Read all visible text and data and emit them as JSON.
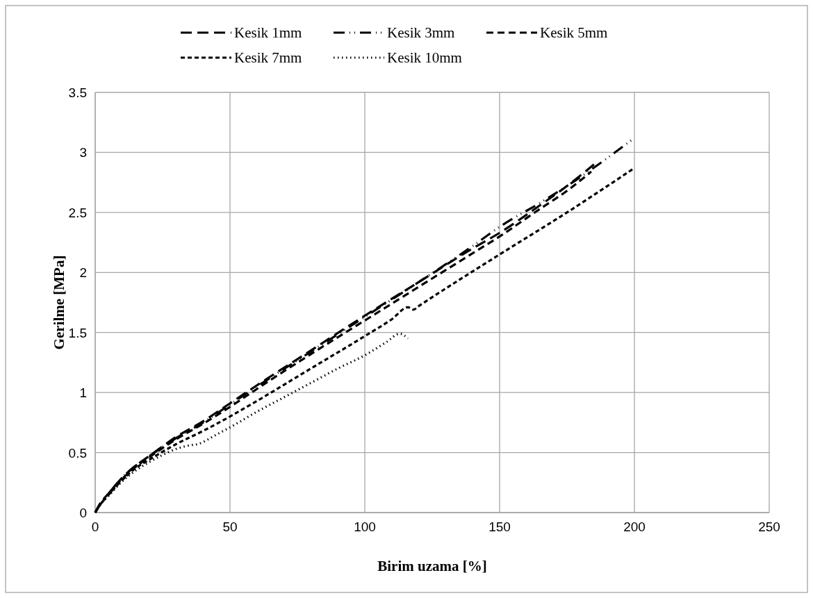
{
  "chart_data": {
    "type": "line",
    "xlabel": "Birim uzama [%]",
    "ylabel": "Gerilme [MPa]",
    "xlim": [
      0,
      250
    ],
    "ylim": [
      0,
      3.5
    ],
    "xticks": [
      0,
      50,
      100,
      150,
      200,
      250
    ],
    "yticks": [
      0,
      0.5,
      1,
      1.5,
      2,
      2.5,
      3,
      3.5
    ],
    "grid": true,
    "legend": "top",
    "marker": "none",
    "series": [
      {
        "name": "Kesik 1mm",
        "color": "#000000",
        "line_style": "long-dashed",
        "x": [
          0,
          2,
          5,
          10,
          15,
          20,
          30,
          40,
          50,
          60,
          80,
          100,
          120,
          140,
          150,
          165,
          175,
          185
        ],
        "values": [
          0,
          0.08,
          0.16,
          0.29,
          0.39,
          0.47,
          0.63,
          0.76,
          0.91,
          1.06,
          1.35,
          1.64,
          1.92,
          2.2,
          2.33,
          2.56,
          2.72,
          2.9
        ]
      },
      {
        "name": "Kesik 3mm",
        "color": "#000000",
        "line_style": "dash-dot-dot",
        "x": [
          0,
          2,
          5,
          10,
          15,
          20,
          30,
          40,
          50,
          60,
          80,
          100,
          120,
          140,
          150,
          165,
          175,
          200
        ],
        "values": [
          0,
          0.08,
          0.16,
          0.29,
          0.39,
          0.47,
          0.62,
          0.75,
          0.9,
          1.05,
          1.34,
          1.63,
          1.92,
          2.22,
          2.38,
          2.58,
          2.72,
          3.12
        ]
      },
      {
        "name": "Kesik 5mm",
        "color": "#000000",
        "line_style": "dashed",
        "x": [
          0,
          2,
          5,
          10,
          15,
          20,
          30,
          40,
          50,
          60,
          80,
          100,
          120,
          140,
          150,
          165,
          175,
          184
        ],
        "values": [
          0,
          0.07,
          0.15,
          0.28,
          0.38,
          0.46,
          0.61,
          0.74,
          0.88,
          1.03,
          1.32,
          1.6,
          1.88,
          2.16,
          2.3,
          2.53,
          2.68,
          2.84
        ]
      },
      {
        "name": "Kesik 7mm",
        "color": "#000000",
        "line_style": "short-dashed",
        "x": [
          0,
          2,
          5,
          10,
          15,
          20,
          30,
          40,
          50,
          60,
          80,
          100,
          110,
          116,
          118,
          120,
          150,
          175,
          200
        ],
        "values": [
          0,
          0.07,
          0.15,
          0.27,
          0.37,
          0.44,
          0.57,
          0.68,
          0.8,
          0.93,
          1.2,
          1.47,
          1.61,
          1.71,
          1.69,
          1.72,
          2.15,
          2.5,
          2.87
        ]
      },
      {
        "name": "Kesik 10mm",
        "color": "#000000",
        "line_style": "dotted",
        "x": [
          0,
          2,
          5,
          10,
          15,
          20,
          25,
          30,
          35,
          38,
          45,
          50,
          60,
          70,
          80,
          90,
          100,
          108,
          113,
          116
        ],
        "values": [
          0,
          0.07,
          0.14,
          0.26,
          0.35,
          0.42,
          0.48,
          0.53,
          0.56,
          0.57,
          0.65,
          0.71,
          0.84,
          0.96,
          1.08,
          1.2,
          1.31,
          1.42,
          1.49,
          1.45
        ]
      }
    ]
  }
}
